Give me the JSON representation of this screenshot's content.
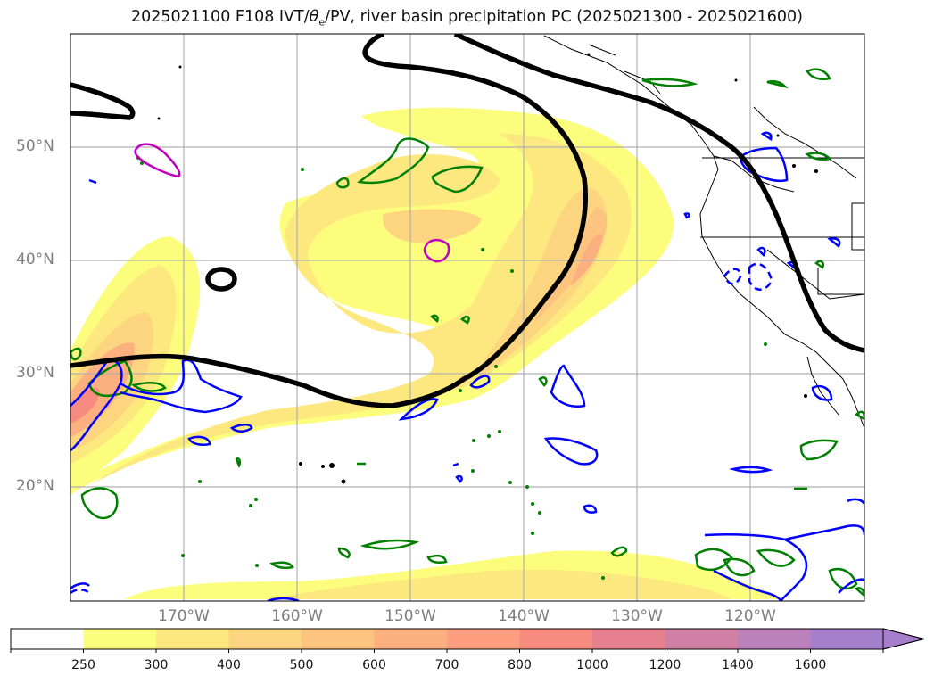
{
  "title": {
    "before": "2025021100 F108 IVT/",
    "theta": "θ",
    "theta_sub": "e",
    "after": "/PV, river basin precipitation PC (2025021300 - 2025021600)"
  },
  "lat_labels": [
    "50°N",
    "40°N",
    "30°N",
    "20°N"
  ],
  "lon_labels": [
    "170°W",
    "160°W",
    "150°W",
    "140°W",
    "130°W",
    "120°W"
  ],
  "colorbar": {
    "tick_labels": [
      "250",
      "300",
      "400",
      "500",
      "600",
      "700",
      "800",
      "1000",
      "1200",
      "1400",
      "1600"
    ],
    "colors": [
      "#ffffff",
      "#fdfd7d",
      "#fde87f",
      "#fdd47f",
      "#fdc47f",
      "#fdb07f",
      "#fd9e80",
      "#f88b80",
      "#e6808e",
      "#cf80a4",
      "#bc80bb",
      "#a67fcc"
    ]
  },
  "contour_colors": {
    "pv": "#000000",
    "theta_e_pos": "#008000",
    "theta_e_neg": "#0000ff",
    "magenta": "#c000c0"
  }
}
